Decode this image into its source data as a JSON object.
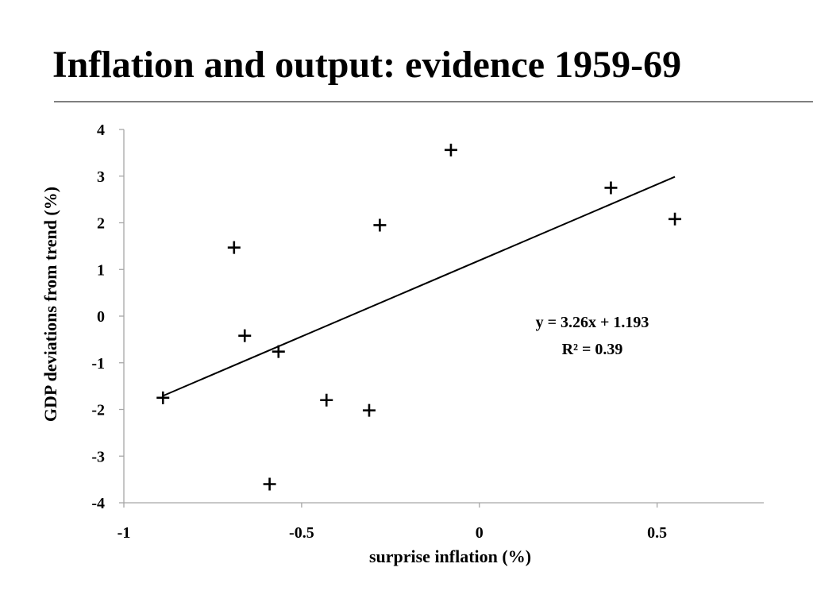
{
  "slide": {
    "title": "Inflation and output: evidence 1959-69"
  },
  "chart_data": {
    "type": "scatter",
    "title": "",
    "xlabel": "surprise inflation (%)",
    "ylabel": "GDP deviations from trend (%)",
    "xlim": [
      -1,
      0.8
    ],
    "ylim": [
      -4,
      4
    ],
    "xticks": [
      -1,
      -0.5,
      0,
      0.5
    ],
    "xtick_labels": [
      "-1",
      "-0.5",
      "0",
      "0.5"
    ],
    "yticks": [
      4,
      3,
      2,
      1,
      0,
      -1,
      -2,
      -3,
      -4
    ],
    "ytick_labels": [
      "4",
      "3",
      "2",
      "1",
      "0",
      "-1",
      "-2",
      "-3",
      "-4"
    ],
    "grid": false,
    "marker": "plus",
    "points": [
      {
        "x": -0.89,
        "y": -1.75
      },
      {
        "x": -0.69,
        "y": 1.47
      },
      {
        "x": -0.66,
        "y": -0.42
      },
      {
        "x": -0.565,
        "y": -0.76
      },
      {
        "x": -0.59,
        "y": -3.6
      },
      {
        "x": -0.43,
        "y": -1.8
      },
      {
        "x": -0.31,
        "y": -2.02
      },
      {
        "x": -0.28,
        "y": 1.95
      },
      {
        "x": -0.08,
        "y": 3.56
      },
      {
        "x": 0.37,
        "y": 2.75
      },
      {
        "x": 0.55,
        "y": 2.08
      }
    ],
    "trendline": {
      "slope": 3.26,
      "intercept": 1.193,
      "x_range": [
        -0.89,
        0.55
      ],
      "equation": "y = 3.26x + 1.193",
      "r_squared": "R² = 0.39"
    }
  }
}
